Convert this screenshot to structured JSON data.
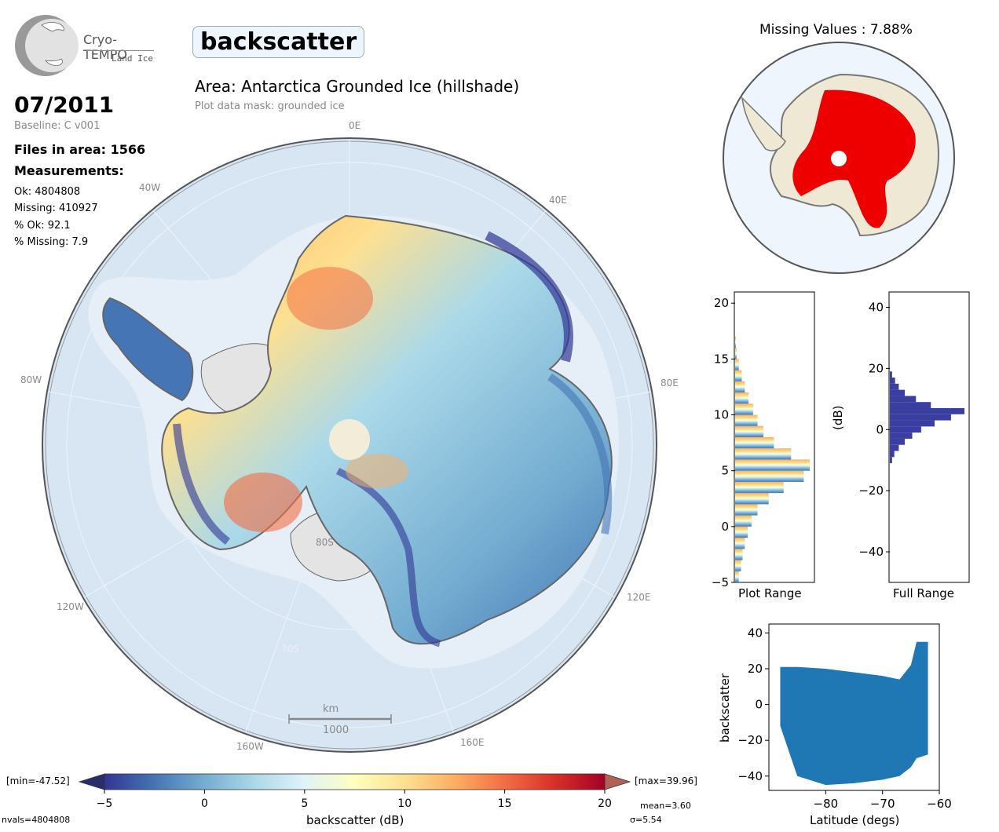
{
  "logo": {
    "name": "Cryo-TEMPO",
    "subtitle": "Land Ice"
  },
  "header": {
    "parameter": "backscatter",
    "area_title": "Area: Antarctica Grounded Ice (hillshade)",
    "mask_note": "Plot data mask: grounded ice",
    "date": "07/2011",
    "baseline": "Baseline: C v001",
    "files_in_area": "Files in area: 1566",
    "measurements_label": "Measurements:",
    "ok": "Ok: 4804808",
    "missing": "Missing: 410927",
    "pct_ok": "% Ok: 92.1",
    "pct_missing": "% Missing: 7.9"
  },
  "map": {
    "longitude_labels": [
      "0E",
      "40E",
      "80E",
      "120E",
      "160E",
      "160W",
      "120W",
      "80W",
      "40W"
    ],
    "latitude_labels": [
      "80S",
      "70S"
    ],
    "scalebar_unit": "km",
    "scalebar_value": "1000"
  },
  "missing_map": {
    "title": "Missing Values : 7.88%"
  },
  "colorbar": {
    "min_label": "[min=-47.52]",
    "max_label": "[max=39.96]",
    "label": "backscatter (dB)",
    "ticks": [
      -5,
      0,
      5,
      10,
      15,
      20
    ],
    "nvals": "nvals=4804808",
    "mean": "mean=3.60",
    "sigma": "σ=5.54",
    "colors": [
      "#313695",
      "#4575b4",
      "#74add1",
      "#abd9e9",
      "#e0f3f8",
      "#ffffbf",
      "#fee090",
      "#fdae61",
      "#f46d43",
      "#d73027",
      "#a50026"
    ]
  },
  "chart_data": [
    {
      "type": "histogram",
      "orientation": "horizontal",
      "xlabel": "Plot Range",
      "ylim": [
        -5,
        21
      ],
      "yticks": [
        -5,
        0,
        5,
        10,
        15,
        20
      ],
      "bins": [
        -5,
        -4,
        -3,
        -2,
        -1,
        0,
        1,
        2,
        3,
        4,
        5,
        6,
        7,
        8,
        9,
        10,
        11,
        12,
        13,
        14,
        15,
        16
      ],
      "counts": [
        0.05,
        0.08,
        0.1,
        0.13,
        0.17,
        0.22,
        0.3,
        0.45,
        0.65,
        0.92,
        1.0,
        0.75,
        0.52,
        0.38,
        0.3,
        0.24,
        0.18,
        0.13,
        0.09,
        0.05,
        0.02,
        0.01
      ]
    },
    {
      "type": "histogram",
      "orientation": "horizontal",
      "xlabel": "Full Range",
      "ylabel": "(dB)",
      "ylim": [
        -50,
        45
      ],
      "yticks": [
        -40,
        -20,
        0,
        20,
        40
      ],
      "bins": [
        -11,
        -9,
        -7,
        -5,
        -3,
        -1,
        1,
        3,
        5,
        7,
        9,
        11,
        13,
        15,
        17
      ],
      "counts": [
        0.03,
        0.06,
        0.12,
        0.2,
        0.3,
        0.42,
        0.6,
        0.82,
        1.0,
        0.55,
        0.35,
        0.2,
        0.12,
        0.07,
        0.03
      ]
    },
    {
      "type": "scatter",
      "xlabel": "Latitude (degs)",
      "ylabel": "backscatter",
      "xlim": [
        -90,
        -60
      ],
      "ylim": [
        -48,
        45
      ],
      "xticks": [
        -80,
        -70,
        -60
      ],
      "yticks": [
        -40,
        -20,
        0,
        20,
        40
      ],
      "color": "#1f77b4",
      "envelope": {
        "x": [
          -88,
          -85,
          -80,
          -75,
          -70,
          -67,
          -65,
          -64,
          -62
        ],
        "y_top": [
          21,
          21,
          20,
          18,
          16,
          14,
          22,
          35,
          35
        ],
        "y_bottom": [
          -12,
          -40,
          -45,
          -44,
          -42,
          -40,
          -35,
          -30,
          -28
        ]
      }
    }
  ]
}
